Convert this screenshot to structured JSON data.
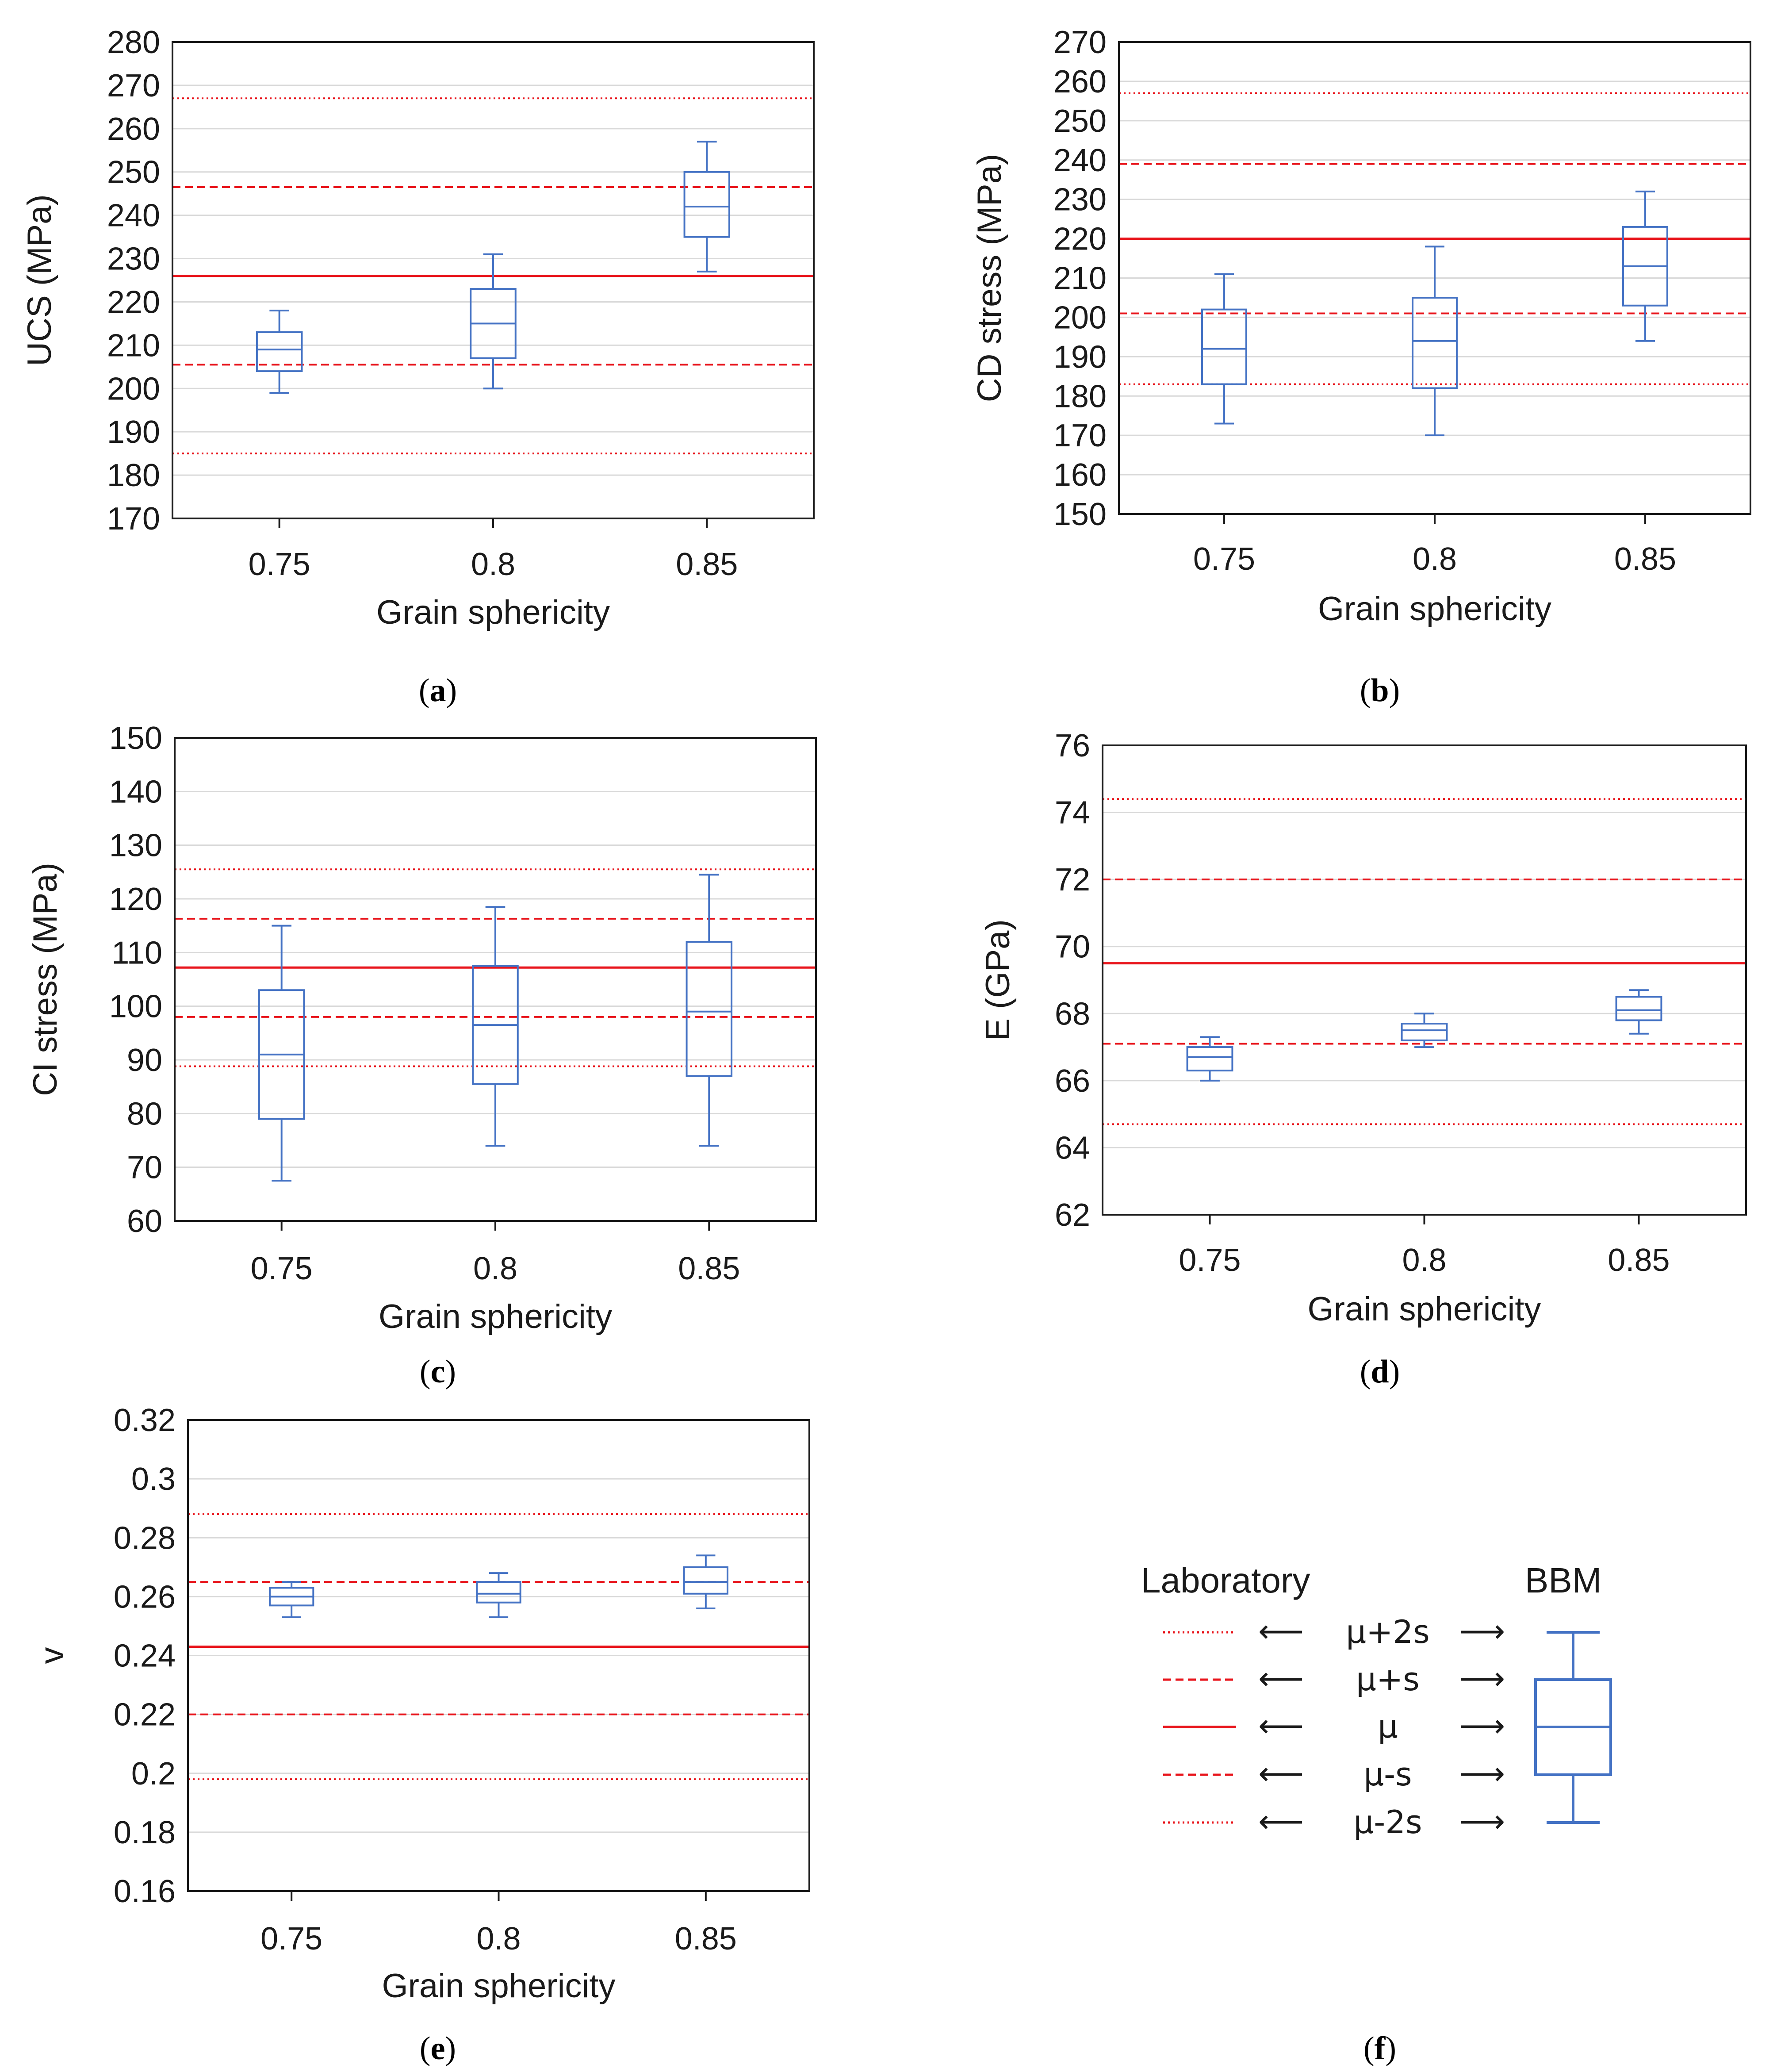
{
  "figure": {
    "box_color": "#4472C4",
    "lab_color": "#E8141B",
    "grid_color": "#D9D9D9"
  },
  "chart_data": [
    {
      "id": "a",
      "type": "box",
      "panel_label": "a",
      "xlabel": "Grain sphericity",
      "ylabel": "UCS (MPa)",
      "ylim": [
        170,
        280
      ],
      "ytick_step": 10,
      "yticks": [
        "170",
        "180",
        "190",
        "200",
        "210",
        "220",
        "230",
        "240",
        "250",
        "260",
        "270",
        "280"
      ],
      "categories": [
        "0.75",
        "0.8",
        "0.85"
      ],
      "boxes": [
        {
          "category": "0.75",
          "min": 199,
          "q1": 204,
          "median": 209,
          "q3": 213,
          "max": 218
        },
        {
          "category": "0.8",
          "min": 200,
          "q1": 207,
          "median": 215,
          "q3": 223,
          "max": 231
        },
        {
          "category": "0.85",
          "min": 227,
          "q1": 235,
          "median": 242,
          "q3": 250,
          "max": 257
        }
      ],
      "laboratory": {
        "mu_plus_2s": 267,
        "mu_plus_s": 246.5,
        "mu": 226,
        "mu_minus_s": 205.5,
        "mu_minus_2s": 185
      }
    },
    {
      "id": "b",
      "type": "box",
      "panel_label": "b",
      "xlabel": "Grain sphericity",
      "ylabel": "CD stress (MPa)",
      "ylim": [
        150,
        270
      ],
      "ytick_step": 10,
      "yticks": [
        "150",
        "160",
        "170",
        "180",
        "190",
        "200",
        "210",
        "220",
        "230",
        "240",
        "250",
        "260",
        "270"
      ],
      "categories": [
        "0.75",
        "0.8",
        "0.85"
      ],
      "boxes": [
        {
          "category": "0.75",
          "min": 173,
          "q1": 183,
          "median": 192,
          "q3": 202,
          "max": 211
        },
        {
          "category": "0.8",
          "min": 170,
          "q1": 182,
          "median": 194,
          "q3": 205,
          "max": 218
        },
        {
          "category": "0.85",
          "min": 194,
          "q1": 203,
          "median": 213,
          "q3": 223,
          "max": 232
        }
      ],
      "laboratory": {
        "mu_plus_2s": 257,
        "mu_plus_s": 239,
        "mu": 220,
        "mu_minus_s": 201,
        "mu_minus_2s": 183
      }
    },
    {
      "id": "c",
      "type": "box",
      "panel_label": "c",
      "xlabel": "Grain sphericity",
      "ylabel": "CI stress (MPa)",
      "ylim": [
        60,
        150
      ],
      "ytick_step": 10,
      "yticks": [
        "60",
        "70",
        "80",
        "90",
        "100",
        "110",
        "120",
        "130",
        "140",
        "150"
      ],
      "categories": [
        "0.75",
        "0.8",
        "0.85"
      ],
      "boxes": [
        {
          "category": "0.75",
          "min": 67.5,
          "q1": 79,
          "median": 91,
          "q3": 103,
          "max": 115
        },
        {
          "category": "0.8",
          "min": 74,
          "q1": 85.5,
          "median": 96.5,
          "q3": 107.5,
          "max": 118.5
        },
        {
          "category": "0.85",
          "min": 74,
          "q1": 87,
          "median": 99,
          "q3": 112,
          "max": 124.5
        }
      ],
      "laboratory": {
        "mu_plus_2s": 125.5,
        "mu_plus_s": 116.3,
        "mu": 107.2,
        "mu_minus_s": 98,
        "mu_minus_2s": 88.8
      }
    },
    {
      "id": "d",
      "type": "box",
      "panel_label": "d",
      "xlabel": "Grain sphericity",
      "ylabel": "E (GPa)",
      "ylim": [
        62,
        76
      ],
      "ytick_step": 2,
      "yticks": [
        "62",
        "64",
        "66",
        "68",
        "70",
        "72",
        "74",
        "76"
      ],
      "categories": [
        "0.75",
        "0.8",
        "0.85"
      ],
      "boxes": [
        {
          "category": "0.75",
          "min": 66.0,
          "q1": 66.3,
          "median": 66.7,
          "q3": 67.0,
          "max": 67.3
        },
        {
          "category": "0.8",
          "min": 67.0,
          "q1": 67.2,
          "median": 67.5,
          "q3": 67.7,
          "max": 68.0
        },
        {
          "category": "0.85",
          "min": 67.4,
          "q1": 67.8,
          "median": 68.1,
          "q3": 68.5,
          "max": 68.7
        }
      ],
      "laboratory": {
        "mu_plus_2s": 74.4,
        "mu_plus_s": 72.0,
        "mu": 69.5,
        "mu_minus_s": 67.1,
        "mu_minus_2s": 64.7
      }
    },
    {
      "id": "e",
      "type": "box",
      "panel_label": "e",
      "xlabel": "Grain sphericity",
      "ylabel": "v",
      "ylim": [
        0.16,
        0.32
      ],
      "ytick_step": 0.02,
      "yticks": [
        "0.16",
        "0.18",
        "0.2",
        "0.22",
        "0.24",
        "0.26",
        "0.28",
        "0.3",
        "0.32"
      ],
      "categories": [
        "0.75",
        "0.8",
        "0.85"
      ],
      "boxes": [
        {
          "category": "0.75",
          "min": 0.253,
          "q1": 0.257,
          "median": 0.26,
          "q3": 0.263,
          "max": 0.265
        },
        {
          "category": "0.8",
          "min": 0.253,
          "q1": 0.258,
          "median": 0.261,
          "q3": 0.265,
          "max": 0.268
        },
        {
          "category": "0.85",
          "min": 0.256,
          "q1": 0.261,
          "median": 0.265,
          "q3": 0.27,
          "max": 0.274
        }
      ],
      "laboratory": {
        "mu_plus_2s": 0.288,
        "mu_plus_s": 0.265,
        "mu": 0.243,
        "mu_minus_s": 0.22,
        "mu_minus_2s": 0.198
      }
    }
  ],
  "legend": {
    "panel_label": "f",
    "laboratory_title": "Laboratory",
    "bbm_title": "BBM",
    "rows": [
      {
        "key": "mu_plus_2s",
        "label": "μ+2s",
        "style": "dotted"
      },
      {
        "key": "mu_plus_s",
        "label": "μ+s",
        "style": "dashed"
      },
      {
        "key": "mu",
        "label": "μ",
        "style": "solid"
      },
      {
        "key": "mu_minus_s",
        "label": "μ-s",
        "style": "dashed"
      },
      {
        "key": "mu_minus_2s",
        "label": "μ-2s",
        "style": "dotted"
      }
    ],
    "arrow_left": "⟵",
    "arrow_right": "⟶"
  }
}
